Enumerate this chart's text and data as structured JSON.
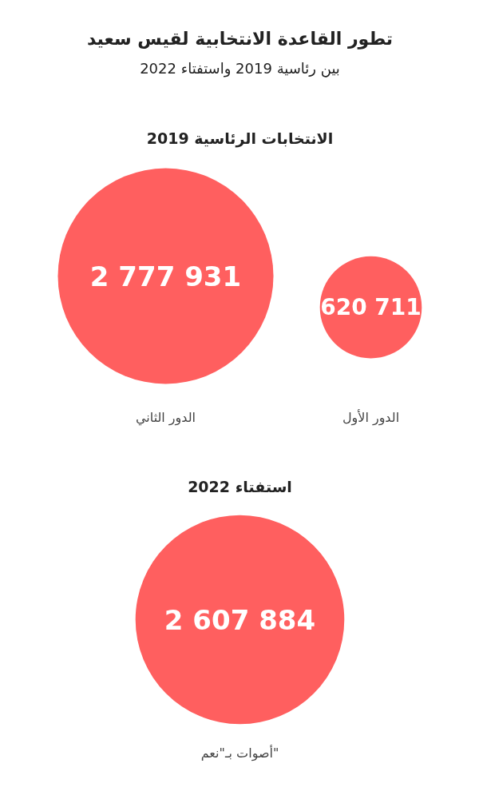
{
  "chart_data": [
    {
      "type": "other",
      "title": "تطور القاعدة الانتخابية لقيس سعيد",
      "subtitle": "بين رئاسية 2019 واستفتاء 2022",
      "annotations": [
        "الانتخابات الرئاسية 2019"
      ],
      "categories": [
        "الدور الثاني",
        "الدور الأول"
      ],
      "values": [
        2777931,
        620711
      ],
      "value_labels": [
        "2 777 931",
        "620 711"
      ],
      "color": "#ff5f5f"
    },
    {
      "type": "other",
      "title": "استفتاء 2022",
      "categories": [
        "أصوات بـ\"نعم\""
      ],
      "values": [
        2607884
      ],
      "value_labels": [
        "2 607 884"
      ],
      "color": "#ff5f5f"
    }
  ]
}
